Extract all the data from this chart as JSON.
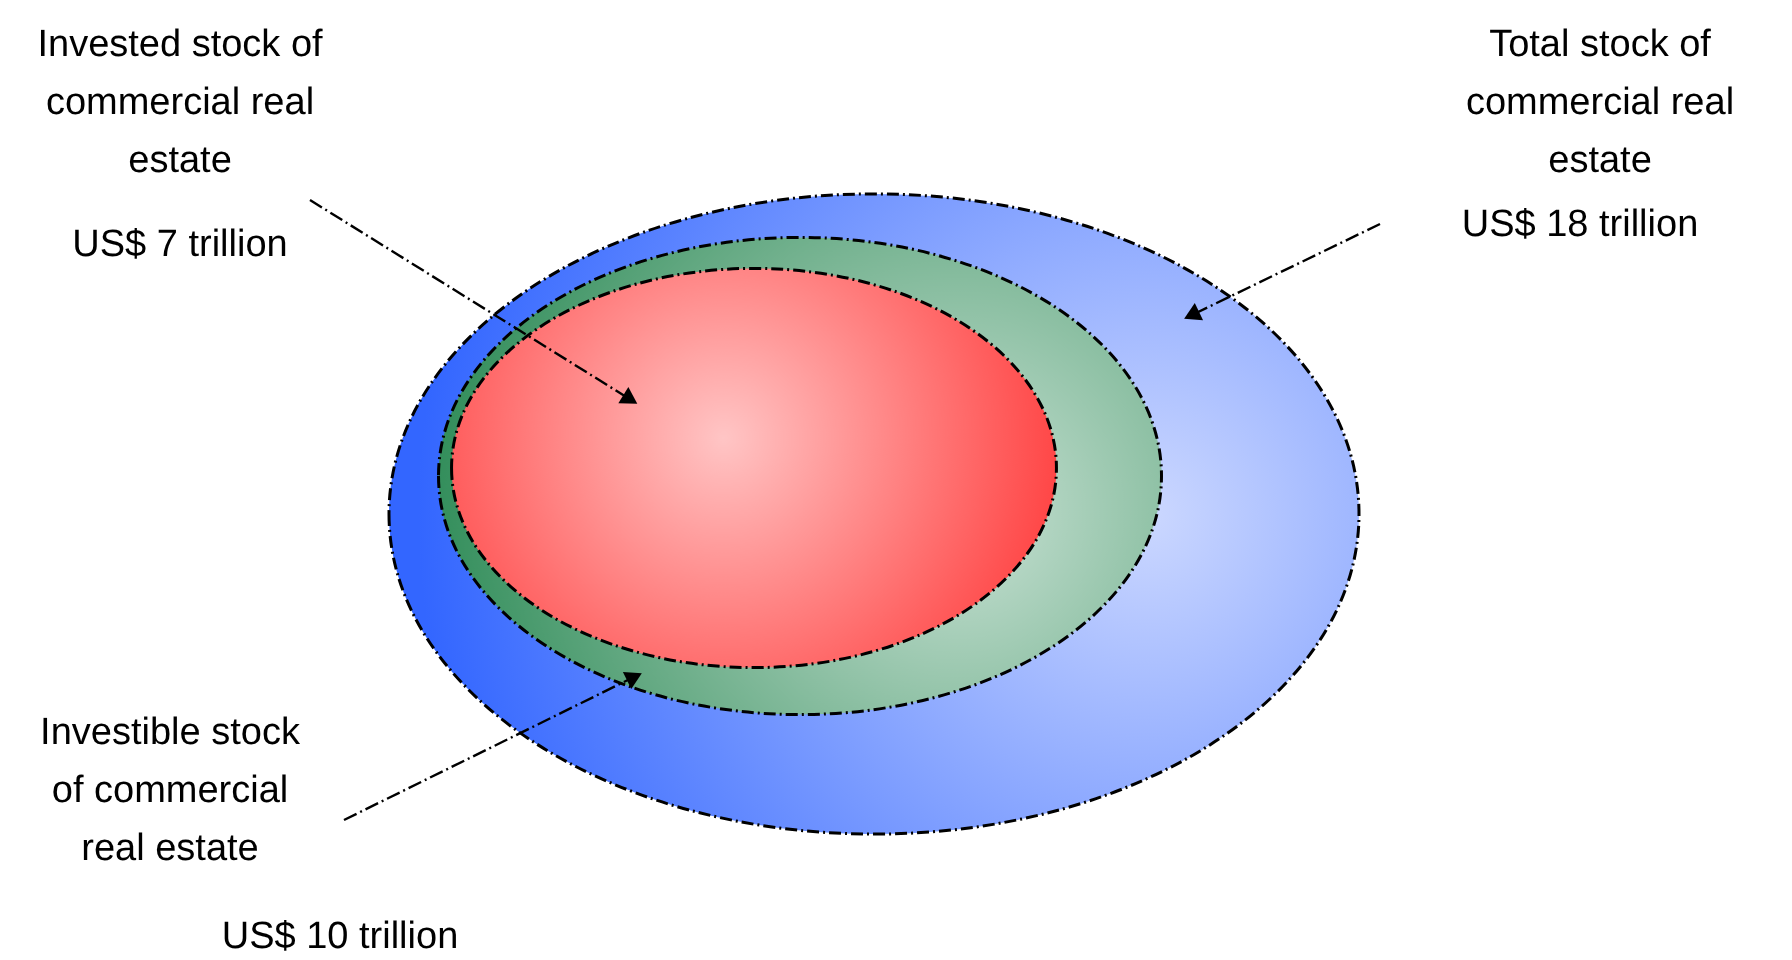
{
  "chart_data": {
    "type": "other",
    "categories": [
      "Total stock of commercial real estate",
      "Investible stock of commercial real estate",
      "Invested stock of commercial real estate"
    ],
    "values": [
      18,
      10,
      7
    ],
    "value_labels": [
      "US$ 18 trillion",
      "US$ 10 trillion",
      "US$ 7 trillion"
    ],
    "colors": [
      "#3366ff",
      "#2e8b57",
      "#ff1a1a"
    ]
  }
}
